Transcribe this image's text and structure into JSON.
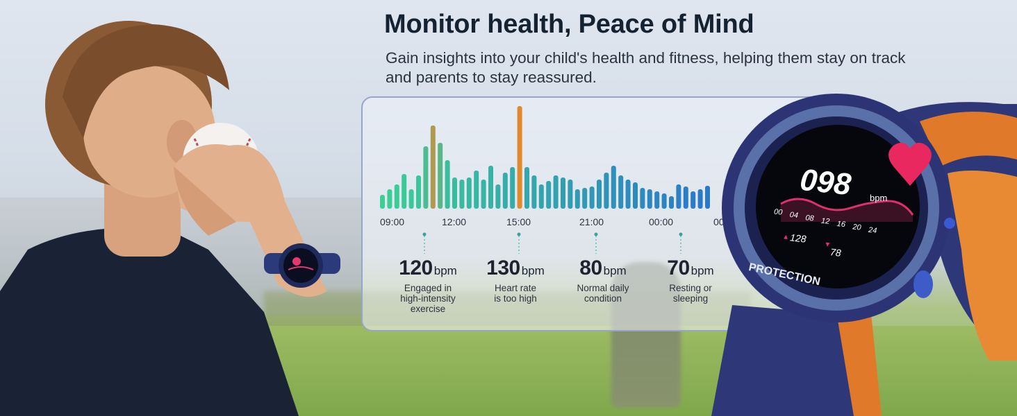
{
  "header": {
    "title": "Monitor health, Peace of Mind",
    "subtitle": "Gain insights into your child's health and fitness, helping them stay on track and parents to stay reassured."
  },
  "chart_data": {
    "type": "bar",
    "x_tick_labels": [
      "09:00",
      "12:00",
      "15:00",
      "21:00",
      "00:00",
      "00:"
    ],
    "values": [
      20,
      28,
      35,
      50,
      28,
      48,
      90,
      120,
      95,
      70,
      45,
      42,
      45,
      55,
      42,
      62,
      35,
      52,
      60,
      148,
      60,
      48,
      35,
      40,
      48,
      45,
      42,
      28,
      30,
      32,
      42,
      52,
      62,
      48,
      42,
      38,
      30,
      28,
      25,
      22,
      18,
      35,
      32,
      25,
      28,
      33
    ],
    "colors": {
      "start": "#3ccf95",
      "end": "#2a78c8",
      "peak": "#e08a2e"
    }
  },
  "stats": [
    {
      "value": "120",
      "unit": "bpm",
      "desc": "Engaged in\nhigh-intensity\nexercise"
    },
    {
      "value": "130",
      "unit": "bpm",
      "desc": "Heart rate\nis too high"
    },
    {
      "value": "80",
      "unit": "bpm",
      "desc": "Normal daily\ncondition"
    },
    {
      "value": "70",
      "unit": "bpm",
      "desc": "Resting or\nsleeping"
    }
  ],
  "watch": {
    "heart_rate": "098",
    "unit": "bpm",
    "hours": [
      "00",
      "04",
      "08",
      "12",
      "16",
      "20",
      "24"
    ],
    "max": "128",
    "min": "78",
    "bezel_label": "PROTECTION"
  }
}
